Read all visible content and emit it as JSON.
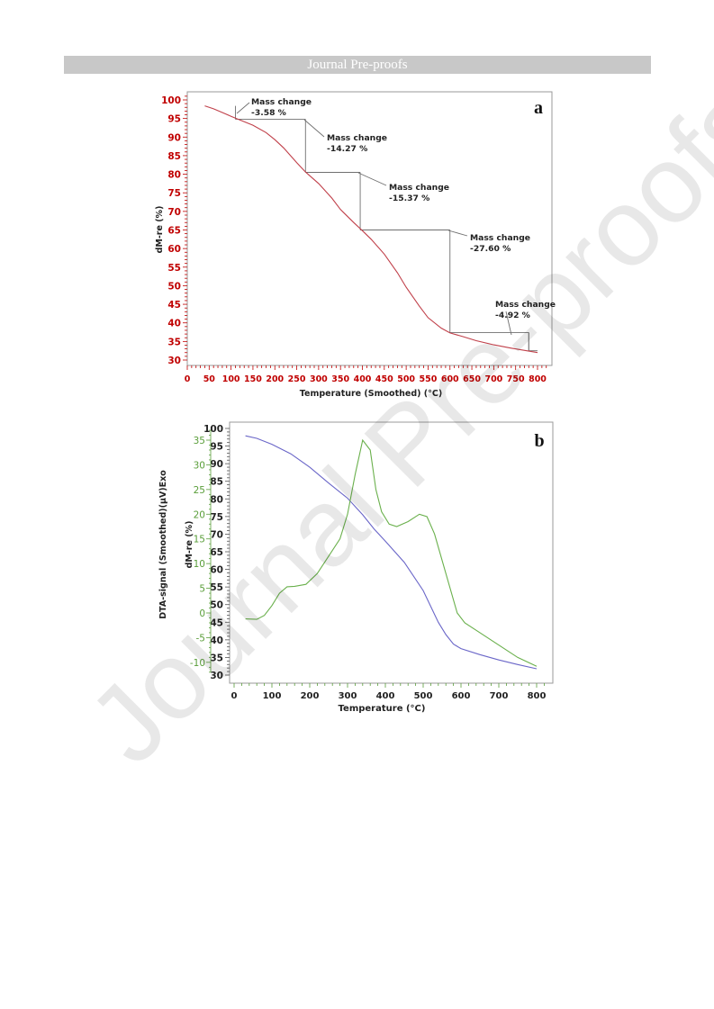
{
  "header": {
    "banner_text": "Journal Pre-proofs"
  },
  "watermark": {
    "text": "Journal Pre-proofs"
  },
  "colors": {
    "tga_line": "#c0404a",
    "axis_red": "#c00000",
    "dm_line": "#6a66c8",
    "dta_line": "#6ab04c",
    "axis_green": "#5a9e3a",
    "frame": "#7f7f7f"
  },
  "chart_data": [
    {
      "type": "line",
      "panel_label": "a",
      "xlabel": "Temperature (Smoothed) (°C)",
      "ylabel": "dM-re (%)",
      "xlim": [
        0,
        820
      ],
      "ylim": [
        29,
        102
      ],
      "xticks": [
        0,
        50,
        100,
        150,
        200,
        250,
        300,
        350,
        400,
        450,
        500,
        550,
        600,
        650,
        700,
        750,
        800
      ],
      "yticks": [
        30,
        35,
        40,
        45,
        50,
        55,
        60,
        65,
        70,
        75,
        80,
        85,
        90,
        95,
        100
      ],
      "series": [
        {
          "x": [
            40,
            60,
            80,
            100,
            120,
            150,
            180,
            200,
            220,
            250,
            270,
            300,
            330,
            350,
            380,
            400,
            420,
            450,
            480,
            500,
            530,
            550,
            580,
            600,
            630,
            660,
            700,
            740,
            780,
            800
          ],
          "y": [
            98.4,
            97.6,
            96.6,
            95.6,
            94.6,
            93.2,
            91.2,
            89.3,
            87.1,
            83.1,
            80.6,
            77.5,
            73.6,
            70.5,
            67.0,
            64.8,
            62.5,
            58.5,
            53.5,
            49.6,
            44.5,
            41.4,
            38.6,
            37.3,
            36.3,
            35.2,
            34.1,
            33.2,
            32.4,
            32.0
          ]
        }
      ],
      "annotations": [
        {
          "label": "Mass change",
          "value": "-3.58 %",
          "x1": 110,
          "x2": 270,
          "y_top": 98.4,
          "y_bot": 94.8
        },
        {
          "label": "Mass change",
          "value": "-14.27 %",
          "x1": 270,
          "x2": 395,
          "y_top": 94.8,
          "y_bot": 80.5
        },
        {
          "label": "Mass change",
          "value": "-15.37 %",
          "x1": 395,
          "x2": 600,
          "y_top": 80.5,
          "y_bot": 65.0
        },
        {
          "label": "Mass change",
          "value": "-27.60 %",
          "x1": 600,
          "x2": 780,
          "y_top": 65.0,
          "y_bot": 37.4
        },
        {
          "label": "Mass change",
          "value": "-4.92 %",
          "x1": 780,
          "x2": 800,
          "y_top": 37.4,
          "y_bot": 32.5
        }
      ]
    },
    {
      "type": "line",
      "panel_label": "b",
      "xlabel": "Temperature (°C)",
      "ylabel_left": "DTA-signal (Smoothed)(µV)Exo",
      "ylabel_right": "dM-re (%)",
      "xlim": [
        -10,
        820
      ],
      "ylim_dm": [
        28,
        101
      ],
      "ylim_dta": [
        -13,
        38
      ],
      "xticks": [
        0,
        100,
        200,
        300,
        400,
        500,
        600,
        700,
        800
      ],
      "yticks_dm": [
        30,
        35,
        40,
        45,
        50,
        55,
        60,
        65,
        70,
        75,
        80,
        85,
        90,
        95,
        100
      ],
      "yticks_dta": [
        -10,
        -5,
        0,
        5,
        10,
        15,
        20,
        25,
        30,
        35
      ],
      "series": [
        {
          "axis": "dm",
          "x": [
            30,
            60,
            100,
            150,
            200,
            250,
            300,
            340,
            370,
            400,
            450,
            500,
            540,
            560,
            580,
            600,
            650,
            700,
            750,
            800
          ],
          "y": [
            97.9,
            97.2,
            95.5,
            92.8,
            89.0,
            84.5,
            80.2,
            75.5,
            71.5,
            68.0,
            62.0,
            54.0,
            45.0,
            41.5,
            38.8,
            37.5,
            35.8,
            34.3,
            33.0,
            31.8
          ]
        },
        {
          "axis": "dta",
          "x": [
            30,
            60,
            80,
            100,
            120,
            140,
            160,
            190,
            220,
            250,
            280,
            300,
            320,
            340,
            360,
            375,
            390,
            410,
            430,
            460,
            490,
            510,
            530,
            560,
            590,
            610,
            650,
            700,
            750,
            800
          ],
          "y": [
            -1.2,
            -1.3,
            -0.5,
            1.5,
            4.0,
            5.3,
            5.4,
            5.8,
            8.0,
            11.5,
            15.0,
            20.0,
            28.0,
            35.0,
            33.0,
            25.0,
            20.5,
            18.0,
            17.5,
            18.5,
            20.0,
            19.5,
            16.0,
            8.0,
            0.0,
            -2.0,
            -4.0,
            -6.5,
            -9.0,
            -10.8
          ]
        }
      ]
    }
  ]
}
